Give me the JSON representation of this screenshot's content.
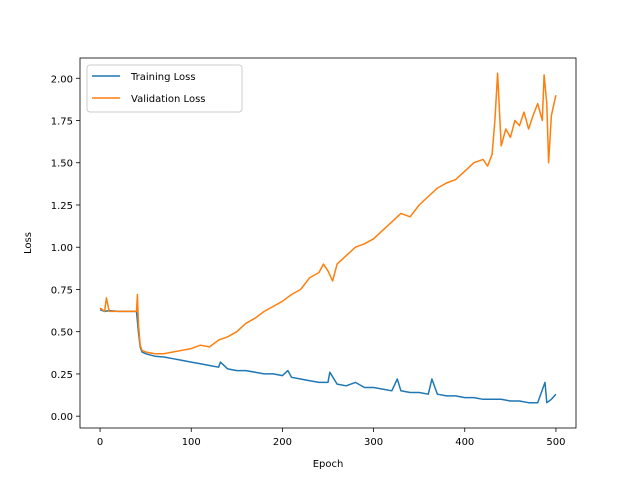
{
  "chart_data": {
    "type": "line",
    "title": "",
    "xlabel": "Epoch",
    "ylabel": "Loss",
    "xlim": [
      -22,
      522
    ],
    "ylim": [
      -0.07,
      2.12
    ],
    "xticks": [
      0,
      100,
      200,
      300,
      400,
      500
    ],
    "xtick_labels": [
      "0",
      "100",
      "200",
      "300",
      "400",
      "500"
    ],
    "yticks": [
      0.0,
      0.25,
      0.5,
      0.75,
      1.0,
      1.25,
      1.5,
      1.75,
      2.0
    ],
    "ytick_labels": [
      "0.00",
      "0.25",
      "0.50",
      "0.75",
      "1.00",
      "1.25",
      "1.50",
      "1.75",
      "2.00"
    ],
    "grid": false,
    "legend_position": "top-left",
    "series": [
      {
        "name": "Training Loss",
        "color": "#1f77b4",
        "x": [
          0,
          5,
          10,
          20,
          30,
          40,
          42,
          44,
          46,
          50,
          60,
          70,
          80,
          90,
          100,
          110,
          120,
          130,
          132,
          140,
          150,
          160,
          170,
          180,
          190,
          200,
          206,
          210,
          220,
          230,
          240,
          250,
          252,
          260,
          270,
          280,
          290,
          300,
          310,
          320,
          326,
          330,
          340,
          350,
          360,
          364,
          370,
          380,
          390,
          400,
          410,
          420,
          430,
          440,
          450,
          460,
          470,
          480,
          488,
          490,
          495,
          500
        ],
        "values": [
          0.63,
          0.62,
          0.625,
          0.62,
          0.62,
          0.62,
          0.5,
          0.41,
          0.38,
          0.37,
          0.355,
          0.35,
          0.34,
          0.33,
          0.32,
          0.31,
          0.3,
          0.29,
          0.32,
          0.28,
          0.27,
          0.27,
          0.26,
          0.25,
          0.25,
          0.24,
          0.27,
          0.23,
          0.22,
          0.21,
          0.2,
          0.2,
          0.26,
          0.19,
          0.18,
          0.2,
          0.17,
          0.17,
          0.16,
          0.15,
          0.22,
          0.15,
          0.14,
          0.14,
          0.13,
          0.22,
          0.13,
          0.12,
          0.12,
          0.11,
          0.11,
          0.1,
          0.1,
          0.1,
          0.09,
          0.09,
          0.08,
          0.08,
          0.2,
          0.08,
          0.1,
          0.13
        ]
      },
      {
        "name": "Validation Loss",
        "color": "#ff7f0e",
        "x": [
          0,
          5,
          7,
          10,
          20,
          30,
          40,
          41,
          42,
          44,
          46,
          50,
          60,
          70,
          80,
          90,
          100,
          110,
          120,
          130,
          140,
          150,
          160,
          170,
          180,
          190,
          200,
          210,
          220,
          230,
          240,
          245,
          250,
          255,
          260,
          270,
          280,
          290,
          300,
          310,
          320,
          330,
          340,
          350,
          360,
          370,
          380,
          390,
          400,
          410,
          420,
          425,
          430,
          433,
          436,
          440,
          445,
          450,
          455,
          460,
          465,
          470,
          475,
          480,
          485,
          487,
          490,
          492,
          495,
          500
        ],
        "values": [
          0.64,
          0.62,
          0.7,
          0.62,
          0.62,
          0.62,
          0.62,
          0.72,
          0.55,
          0.42,
          0.39,
          0.38,
          0.37,
          0.37,
          0.38,
          0.39,
          0.4,
          0.42,
          0.41,
          0.45,
          0.47,
          0.5,
          0.55,
          0.58,
          0.62,
          0.65,
          0.68,
          0.72,
          0.75,
          0.82,
          0.85,
          0.9,
          0.86,
          0.8,
          0.9,
          0.95,
          1.0,
          1.02,
          1.05,
          1.1,
          1.15,
          1.2,
          1.18,
          1.25,
          1.3,
          1.35,
          1.38,
          1.4,
          1.45,
          1.5,
          1.52,
          1.48,
          1.55,
          1.75,
          2.03,
          1.6,
          1.7,
          1.65,
          1.75,
          1.72,
          1.8,
          1.7,
          1.78,
          1.85,
          1.75,
          2.02,
          1.85,
          1.5,
          1.78,
          1.9
        ]
      }
    ]
  }
}
